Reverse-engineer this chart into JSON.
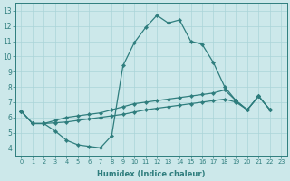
{
  "xlabel": "Humidex (Indice chaleur)",
  "xlim": [
    -0.5,
    23.5
  ],
  "ylim": [
    3.5,
    13.5
  ],
  "xticks": [
    0,
    1,
    2,
    3,
    4,
    5,
    6,
    7,
    8,
    9,
    10,
    11,
    12,
    13,
    14,
    15,
    16,
    17,
    18,
    19,
    20,
    21,
    22,
    23
  ],
  "yticks": [
    4,
    5,
    6,
    7,
    8,
    9,
    10,
    11,
    12,
    13
  ],
  "bg_color": "#cce8ea",
  "line_color": "#2e7d7d",
  "grid_color": "#aad4d8",
  "series": [
    {
      "x": [
        0,
        1,
        2,
        3,
        4,
        5,
        6,
        7,
        8,
        9,
        10,
        11,
        12,
        13,
        14,
        15,
        16,
        17,
        18,
        19,
        20,
        21,
        22
      ],
      "y": [
        6.4,
        5.6,
        5.6,
        5.1,
        4.5,
        4.2,
        4.1,
        4.0,
        4.8,
        9.4,
        10.9,
        11.9,
        12.7,
        12.2,
        12.4,
        11.0,
        10.8,
        9.6,
        8.0,
        7.1,
        6.5,
        7.4,
        6.5
      ]
    },
    {
      "x": [
        0,
        1,
        2,
        3,
        4,
        5,
        6,
        7,
        8,
        9,
        10,
        11,
        12,
        13,
        14,
        15,
        16,
        17,
        18,
        19,
        20,
        21,
        22
      ],
      "y": [
        6.4,
        5.6,
        5.6,
        5.8,
        6.0,
        6.1,
        6.2,
        6.3,
        6.5,
        6.7,
        6.9,
        7.0,
        7.1,
        7.2,
        7.3,
        7.4,
        7.5,
        7.6,
        7.8,
        7.1,
        6.5,
        7.4,
        6.5
      ]
    },
    {
      "x": [
        0,
        1,
        2,
        3,
        4,
        5,
        6,
        7,
        8,
        9,
        10,
        11,
        12,
        13,
        14,
        15,
        16,
        17,
        18,
        19,
        20,
        21,
        22
      ],
      "y": [
        6.4,
        5.6,
        5.6,
        5.65,
        5.7,
        5.8,
        5.9,
        6.0,
        6.1,
        6.2,
        6.35,
        6.5,
        6.6,
        6.7,
        6.8,
        6.9,
        7.0,
        7.1,
        7.2,
        7.0,
        6.5,
        7.4,
        6.5
      ]
    }
  ]
}
